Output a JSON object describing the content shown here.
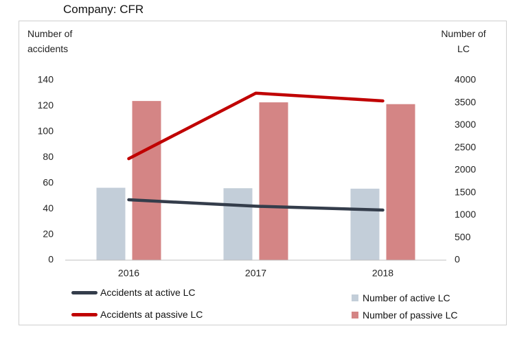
{
  "chart_data": {
    "type": "bar+line",
    "title": "Company: CFR",
    "ylabel_left": "Number of accidents",
    "ylabel_right": "Number of LC",
    "categories": [
      "2016",
      "2017",
      "2018"
    ],
    "left_axis": {
      "ylim": [
        0,
        140
      ],
      "ticks": [
        0,
        20,
        40,
        60,
        80,
        100,
        120,
        140
      ]
    },
    "right_axis": {
      "ylim": [
        0,
        4000
      ],
      "ticks": [
        0,
        500,
        1000,
        1500,
        2000,
        2500,
        3000,
        3500,
        4000
      ]
    },
    "bar_series": [
      {
        "name": "Number of active LC",
        "color": "#c3ced9",
        "axis": "right",
        "values": [
          1610,
          1600,
          1590
        ]
      },
      {
        "name": "Number of passive LC",
        "color": "#d48585",
        "axis": "right",
        "values": [
          3540,
          3510,
          3470
        ]
      }
    ],
    "line_series": [
      {
        "name": "Accidents at active LC",
        "color": "#343d4b",
        "axis": "left",
        "values": [
          47,
          42,
          39
        ]
      },
      {
        "name": "Accidents at passive LC",
        "color": "#c00000",
        "axis": "left",
        "values": [
          79,
          130,
          124
        ]
      }
    ],
    "grid": false,
    "legend_position": "bottom"
  }
}
